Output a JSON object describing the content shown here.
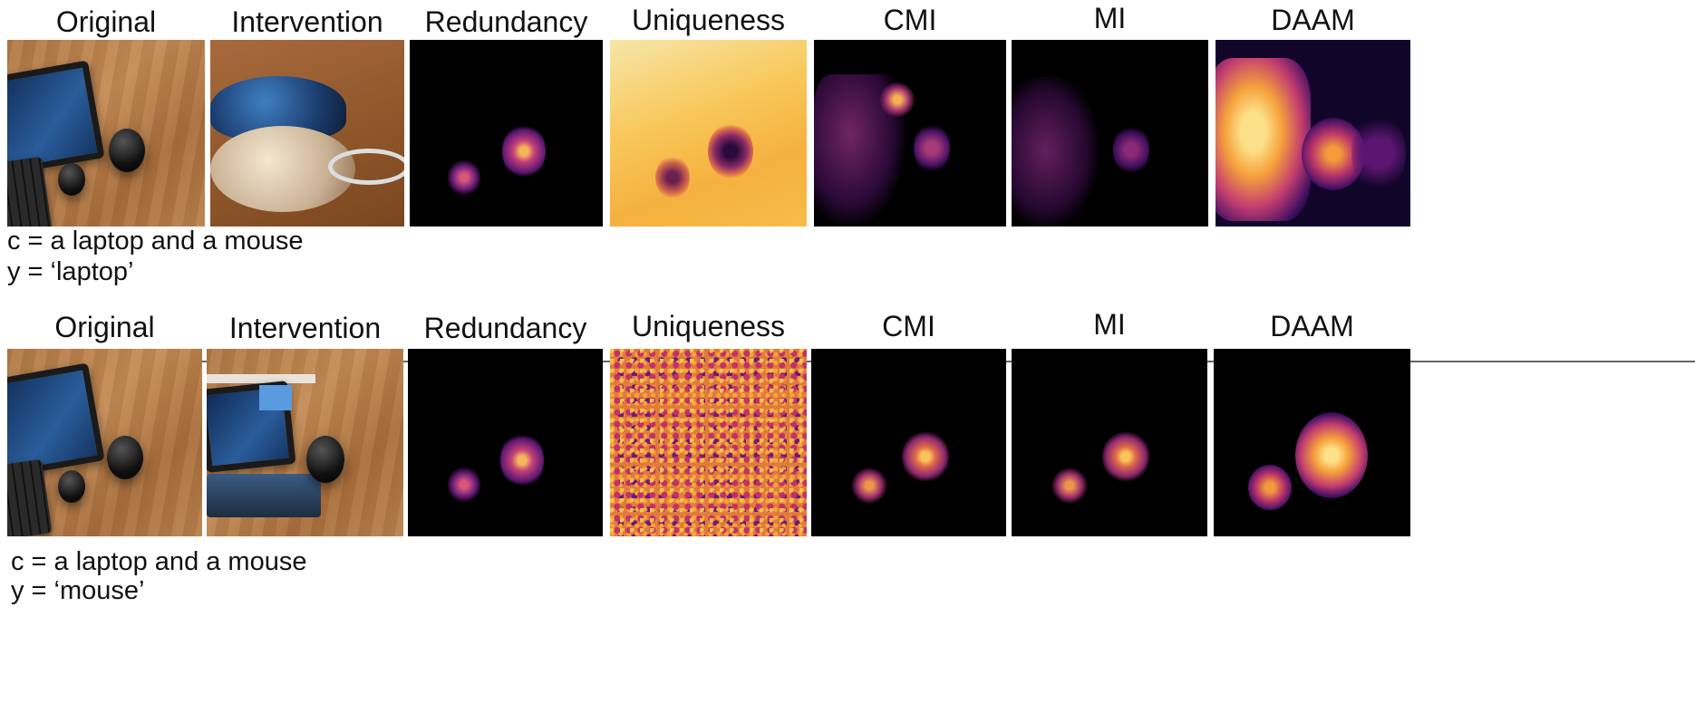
{
  "rows": [
    {
      "headers": {
        "original": "Original",
        "intervention": "Intervention",
        "redundancy": "Redundancy",
        "uniqueness": "Uniqueness",
        "cmi": "CMI",
        "mi": "MI",
        "daam": "DAAM"
      },
      "caption_c": "c = a laptop and a mouse",
      "caption_y": "y = ‘laptop’"
    },
    {
      "headers": {
        "original": "Original",
        "intervention": "Intervention",
        "redundancy": "Redundancy",
        "uniqueness": "Uniqueness",
        "cmi": "CMI",
        "mi": "MI",
        "daam": "DAAM"
      },
      "caption_c": "c = a laptop and a mouse",
      "caption_y": "y = ‘mouse’"
    }
  ]
}
